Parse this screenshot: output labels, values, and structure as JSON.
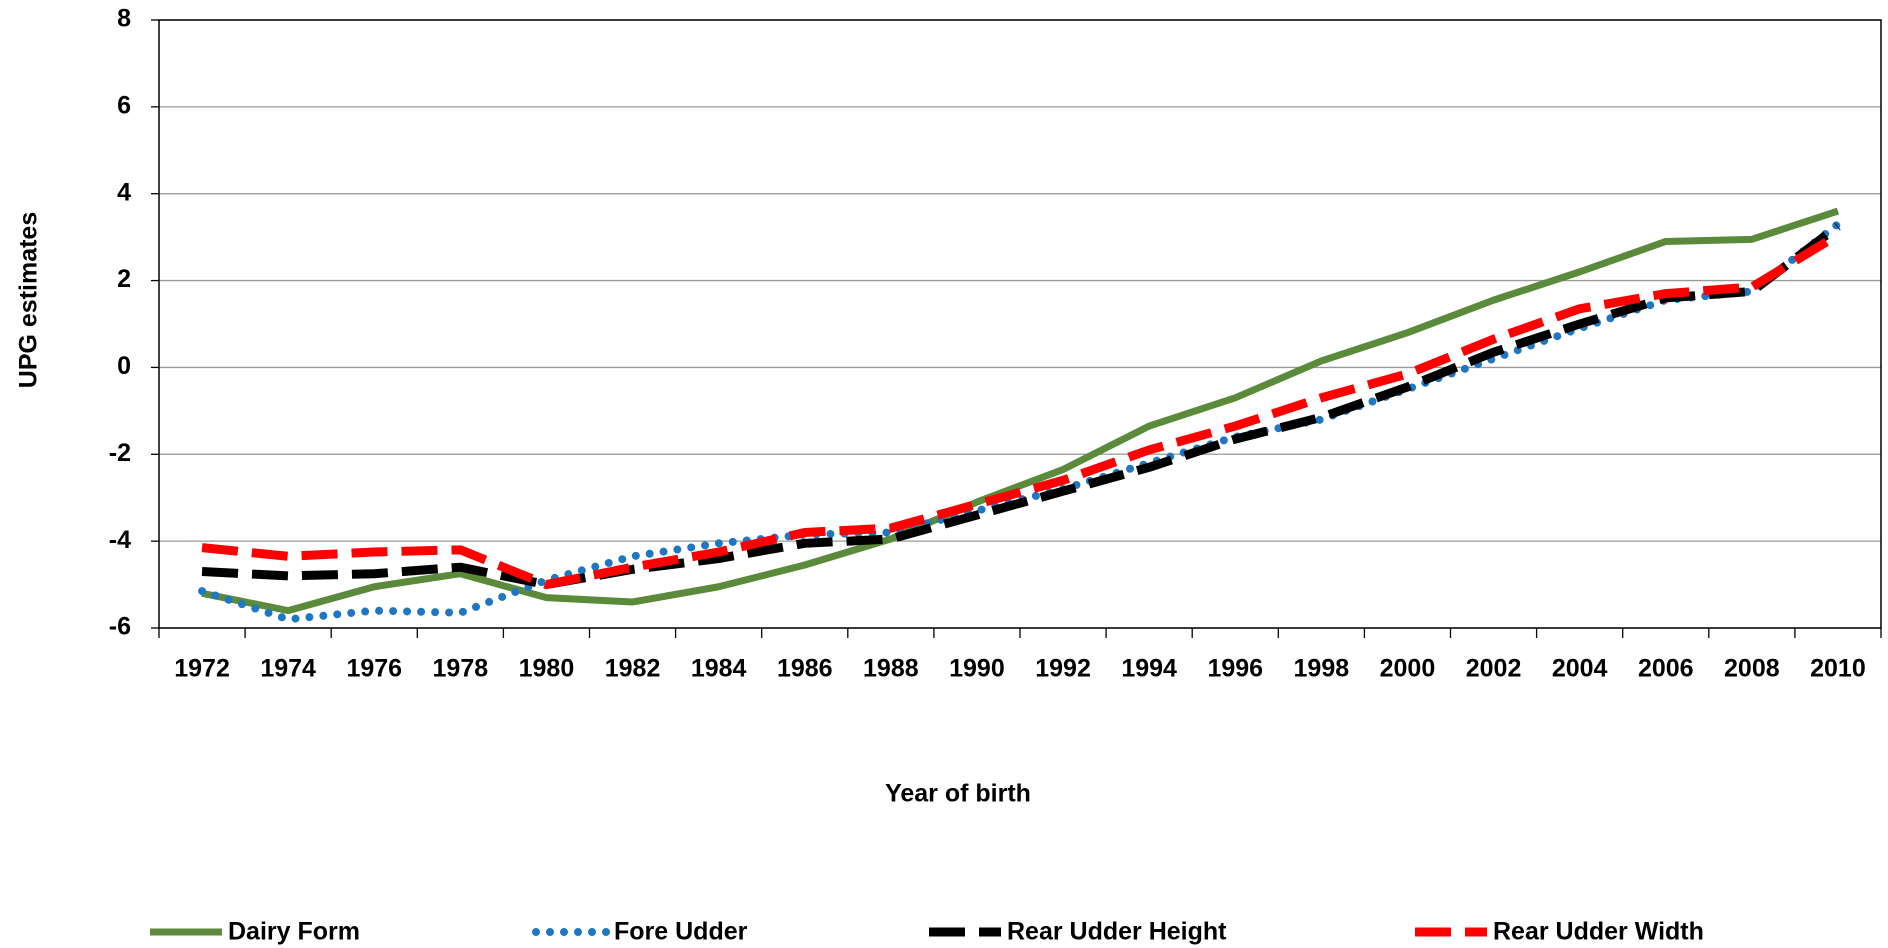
{
  "chart_data": {
    "type": "line",
    "x_label": "Year of birth",
    "y_label": "UPG estimates",
    "categories": [
      "1972",
      "1974",
      "1976",
      "1978",
      "1980",
      "1982",
      "1984",
      "1986",
      "1988",
      "1990",
      "1992",
      "1994",
      "1996",
      "1998",
      "2000",
      "2002",
      "2004",
      "2006",
      "2008",
      "2010"
    ],
    "ylim": [
      -6,
      8
    ],
    "yticks": [
      -6,
      -4,
      -2,
      0,
      2,
      4,
      6,
      8
    ],
    "grid": true,
    "legend": "bottom",
    "series": [
      {
        "name": "Dairy Form",
        "color": "#5b8a3a",
        "line_style": "solid",
        "values": [
          -5.2,
          -5.6,
          -5.05,
          -4.75,
          -5.3,
          -5.4,
          -5.05,
          -4.55,
          -3.95,
          -3.1,
          -2.35,
          -1.35,
          -0.7,
          0.15,
          0.8,
          1.55,
          2.2,
          2.9,
          2.95,
          3.6
        ]
      },
      {
        "name": "Fore Udder",
        "color": "#1f77c4",
        "line_style": "dotted",
        "values": [
          -5.15,
          -5.8,
          -5.6,
          -5.65,
          -4.9,
          -4.35,
          -4.05,
          -3.85,
          -3.8,
          -3.3,
          -2.8,
          -2.2,
          -1.6,
          -1.2,
          -0.5,
          0.2,
          0.9,
          1.55,
          1.75,
          3.3
        ]
      },
      {
        "name": "Rear Udder Height",
        "color": "#000000",
        "line_style": "dashed",
        "values": [
          -4.7,
          -4.8,
          -4.75,
          -4.6,
          -5.0,
          -4.65,
          -4.4,
          -4.05,
          -3.95,
          -3.4,
          -2.85,
          -2.3,
          -1.65,
          -1.15,
          -0.45,
          0.35,
          1.0,
          1.6,
          1.75,
          3.25
        ]
      },
      {
        "name": "Rear Udder Width",
        "color": "#ff0000",
        "line_style": "dashed",
        "values": [
          -4.15,
          -4.35,
          -4.25,
          -4.2,
          -5.0,
          -4.6,
          -4.25,
          -3.8,
          -3.7,
          -3.15,
          -2.6,
          -1.9,
          -1.35,
          -0.7,
          -0.15,
          0.65,
          1.35,
          1.7,
          1.85,
          3.05
        ]
      }
    ]
  }
}
